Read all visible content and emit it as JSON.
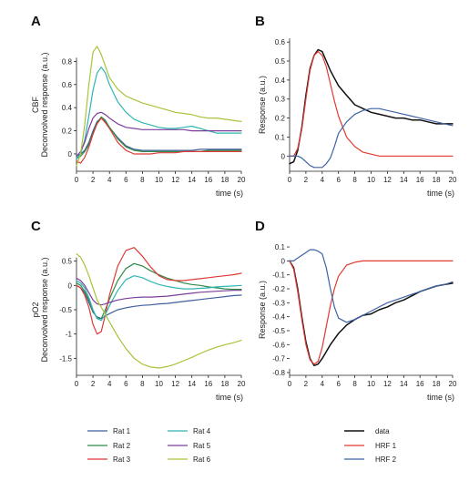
{
  "figure": {
    "legend_left": [
      "Rat 1",
      "Rat 2",
      "Rat 3",
      "Rat 4",
      "Rat 5",
      "Rat 6"
    ],
    "legend_right": [
      "data",
      "HRF 1",
      "HRF 2"
    ]
  },
  "colors": {
    "rat1": "#3f5f9c",
    "rat2": "#2e8b4a",
    "rat3": "#dd3a35",
    "rat4": "#32b4b4",
    "rat5": "#7b3f9a",
    "rat6": "#a8c43a",
    "data": "#111111",
    "hrf1": "#e03a32",
    "hrf2": "#3e62a6"
  },
  "chart_data": [
    {
      "panel": "A",
      "type": "line",
      "side_label": "CBF",
      "ylabel": "Deconvolved response (a.u.)",
      "xlabel": "time (s)",
      "xlim": [
        0,
        20
      ],
      "ylim": [
        -0.15,
        1.0
      ],
      "xticks": [
        0,
        2,
        4,
        6,
        8,
        10,
        12,
        14,
        16,
        18,
        20
      ],
      "yticks": [
        0,
        0.2,
        0.4,
        0.6,
        0.8
      ],
      "x": [
        0,
        0.5,
        1,
        1.5,
        2,
        2.5,
        3,
        3.5,
        4,
        5,
        6,
        7,
        8,
        9,
        10,
        11,
        12,
        13,
        14,
        15,
        16,
        17,
        18,
        19,
        20
      ],
      "series": [
        {
          "name": "Rat 1",
          "color_key": "rat1",
          "values": [
            -0.02,
            0.0,
            0.03,
            0.1,
            0.2,
            0.28,
            0.31,
            0.28,
            0.23,
            0.14,
            0.07,
            0.04,
            0.03,
            0.03,
            0.03,
            0.03,
            0.03,
            0.03,
            0.03,
            0.04,
            0.04,
            0.04,
            0.04,
            0.04,
            0.04
          ]
        },
        {
          "name": "Rat 2",
          "color_key": "rat2",
          "values": [
            -0.04,
            -0.02,
            0.02,
            0.08,
            0.18,
            0.27,
            0.32,
            0.29,
            0.23,
            0.13,
            0.06,
            0.03,
            0.02,
            0.02,
            0.02,
            0.02,
            0.02,
            0.02,
            0.02,
            0.02,
            0.03,
            0.03,
            0.03,
            0.03,
            0.03
          ]
        },
        {
          "name": "Rat 3",
          "color_key": "rat3",
          "values": [
            -0.06,
            -0.08,
            -0.03,
            0.06,
            0.17,
            0.26,
            0.31,
            0.27,
            0.22,
            0.1,
            0.03,
            0.0,
            0.0,
            0.0,
            0.01,
            0.01,
            0.01,
            0.02,
            0.02,
            0.02,
            0.02,
            0.02,
            0.02,
            0.02,
            0.02
          ]
        },
        {
          "name": "Rat 4",
          "color_key": "rat4",
          "values": [
            -0.04,
            0.0,
            0.12,
            0.33,
            0.55,
            0.7,
            0.75,
            0.7,
            0.6,
            0.45,
            0.36,
            0.3,
            0.27,
            0.25,
            0.23,
            0.22,
            0.22,
            0.23,
            0.24,
            0.22,
            0.2,
            0.18,
            0.18,
            0.18,
            0.18
          ]
        },
        {
          "name": "Rat 5",
          "color_key": "rat5",
          "values": [
            -0.02,
            0.02,
            0.1,
            0.22,
            0.31,
            0.35,
            0.36,
            0.34,
            0.31,
            0.26,
            0.23,
            0.22,
            0.21,
            0.21,
            0.21,
            0.21,
            0.21,
            0.21,
            0.2,
            0.2,
            0.2,
            0.2,
            0.2,
            0.2,
            0.2
          ]
        },
        {
          "name": "Rat 6",
          "color_key": "rat6",
          "values": [
            -0.1,
            0.0,
            0.25,
            0.6,
            0.88,
            0.93,
            0.86,
            0.76,
            0.66,
            0.56,
            0.5,
            0.47,
            0.44,
            0.42,
            0.4,
            0.38,
            0.36,
            0.35,
            0.34,
            0.32,
            0.31,
            0.31,
            0.3,
            0.29,
            0.28
          ]
        }
      ]
    },
    {
      "panel": "B",
      "type": "line",
      "ylabel": "Response (a.u.)",
      "xlabel": "time (s)",
      "xlim": [
        0,
        20
      ],
      "ylim": [
        -0.08,
        0.62
      ],
      "xticks": [
        0,
        2,
        4,
        6,
        8,
        10,
        12,
        14,
        16,
        18,
        20
      ],
      "yticks": [
        0,
        0.1,
        0.2,
        0.3,
        0.4,
        0.5,
        0.6
      ],
      "x": [
        0,
        0.5,
        1,
        1.5,
        2,
        2.5,
        3,
        3.5,
        4,
        4.5,
        5,
        5.5,
        6,
        7,
        8,
        9,
        10,
        11,
        12,
        13,
        14,
        15,
        16,
        17,
        18,
        19,
        20
      ],
      "series": [
        {
          "name": "data",
          "color_key": "data",
          "values": [
            -0.04,
            -0.03,
            0.03,
            0.15,
            0.32,
            0.46,
            0.53,
            0.56,
            0.55,
            0.5,
            0.45,
            0.41,
            0.37,
            0.32,
            0.27,
            0.25,
            0.23,
            0.22,
            0.21,
            0.2,
            0.2,
            0.19,
            0.19,
            0.18,
            0.17,
            0.17,
            0.17
          ]
        },
        {
          "name": "HRF 1",
          "color_key": "hrf1",
          "values": [
            0.0,
            0.0,
            0.04,
            0.14,
            0.3,
            0.45,
            0.53,
            0.55,
            0.53,
            0.47,
            0.38,
            0.29,
            0.21,
            0.1,
            0.05,
            0.02,
            0.01,
            0.0,
            0.0,
            0.0,
            0.0,
            0.0,
            0.0,
            0.0,
            0.0,
            0.0,
            0.0
          ]
        },
        {
          "name": "HRF 2",
          "color_key": "hrf2",
          "values": [
            0.0,
            0.0,
            0.0,
            -0.01,
            -0.03,
            -0.05,
            -0.06,
            -0.06,
            -0.06,
            -0.04,
            -0.01,
            0.05,
            0.12,
            0.18,
            0.22,
            0.24,
            0.25,
            0.25,
            0.24,
            0.23,
            0.22,
            0.21,
            0.2,
            0.19,
            0.18,
            0.17,
            0.16
          ]
        }
      ]
    },
    {
      "panel": "C",
      "type": "line",
      "side_label": "pO2",
      "ylabel": "Deconvolved response (a.u.)",
      "xlabel": "time (s)",
      "xlim": [
        0,
        20
      ],
      "ylim": [
        -1.85,
        0.85
      ],
      "xticks": [
        0,
        2,
        4,
        6,
        8,
        10,
        12,
        14,
        16,
        18,
        20
      ],
      "yticks": [
        -1.5,
        -1,
        -0.5,
        0,
        0.5
      ],
      "x": [
        0,
        0.5,
        1,
        1.5,
        2,
        2.5,
        3,
        3.5,
        4,
        5,
        6,
        7,
        8,
        9,
        10,
        11,
        12,
        13,
        14,
        15,
        16,
        17,
        18,
        19,
        20
      ],
      "series": [
        {
          "name": "Rat 1",
          "color_key": "rat1",
          "values": [
            0.0,
            -0.05,
            -0.15,
            -0.35,
            -0.55,
            -0.65,
            -0.68,
            -0.63,
            -0.58,
            -0.5,
            -0.46,
            -0.43,
            -0.41,
            -0.4,
            -0.38,
            -0.37,
            -0.35,
            -0.33,
            -0.31,
            -0.29,
            -0.27,
            -0.25,
            -0.23,
            -0.21,
            -0.2
          ]
        },
        {
          "name": "Rat 2",
          "color_key": "rat2",
          "values": [
            0.05,
            0.0,
            -0.12,
            -0.3,
            -0.52,
            -0.68,
            -0.68,
            -0.5,
            -0.28,
            0.1,
            0.35,
            0.45,
            0.4,
            0.3,
            0.22,
            0.15,
            0.1,
            0.05,
            0.02,
            0.0,
            -0.03,
            -0.05,
            -0.07,
            -0.08,
            -0.08
          ]
        },
        {
          "name": "Rat 3",
          "color_key": "rat3",
          "values": [
            0.0,
            -0.05,
            -0.2,
            -0.45,
            -0.8,
            -1.0,
            -0.95,
            -0.6,
            -0.2,
            0.4,
            0.72,
            0.78,
            0.6,
            0.38,
            0.2,
            0.12,
            0.1,
            0.1,
            0.12,
            0.14,
            0.16,
            0.18,
            0.2,
            0.22,
            0.25
          ]
        },
        {
          "name": "Rat 4",
          "color_key": "rat4",
          "values": [
            0.1,
            0.05,
            -0.05,
            -0.25,
            -0.5,
            -0.68,
            -0.72,
            -0.6,
            -0.42,
            -0.1,
            0.12,
            0.2,
            0.16,
            0.08,
            0.02,
            -0.02,
            -0.05,
            -0.07,
            -0.07,
            -0.06,
            -0.05,
            -0.03,
            -0.02,
            -0.01,
            0.0
          ]
        },
        {
          "name": "Rat 5",
          "color_key": "rat5",
          "values": [
            0.15,
            0.1,
            0.0,
            -0.15,
            -0.3,
            -0.38,
            -0.4,
            -0.38,
            -0.35,
            -0.3,
            -0.27,
            -0.25,
            -0.24,
            -0.24,
            -0.23,
            -0.22,
            -0.2,
            -0.18,
            -0.16,
            -0.14,
            -0.13,
            -0.12,
            -0.11,
            -0.1,
            -0.1
          ]
        },
        {
          "name": "Rat 6",
          "color_key": "rat6",
          "values": [
            0.65,
            0.58,
            0.42,
            0.2,
            -0.05,
            -0.3,
            -0.45,
            -0.6,
            -0.75,
            -1.05,
            -1.3,
            -1.5,
            -1.62,
            -1.68,
            -1.7,
            -1.67,
            -1.62,
            -1.55,
            -1.48,
            -1.4,
            -1.33,
            -1.27,
            -1.22,
            -1.18,
            -1.13
          ]
        }
      ]
    },
    {
      "panel": "D",
      "type": "line",
      "ylabel": "Response (a.u.)",
      "xlabel": "time (s)",
      "xlim": [
        0,
        20
      ],
      "ylim": [
        -0.82,
        0.12
      ],
      "xticks": [
        0,
        2,
        4,
        6,
        8,
        10,
        12,
        14,
        16,
        18,
        20
      ],
      "yticks": [
        0.1,
        0,
        -0.1,
        -0.2,
        -0.3,
        -0.4,
        -0.5,
        -0.6,
        -0.7,
        -0.8
      ],
      "x": [
        0,
        0.5,
        1,
        1.5,
        2,
        2.5,
        3,
        3.5,
        4,
        4.5,
        5,
        5.5,
        6,
        7,
        8,
        9,
        10,
        11,
        12,
        13,
        14,
        15,
        16,
        17,
        18,
        19,
        20
      ],
      "series": [
        {
          "name": "data",
          "color_key": "data",
          "values": [
            0.0,
            -0.05,
            -0.2,
            -0.4,
            -0.58,
            -0.7,
            -0.75,
            -0.74,
            -0.7,
            -0.65,
            -0.6,
            -0.56,
            -0.52,
            -0.46,
            -0.42,
            -0.39,
            -0.38,
            -0.35,
            -0.33,
            -0.3,
            -0.28,
            -0.25,
            -0.22,
            -0.2,
            -0.18,
            -0.17,
            -0.16
          ]
        },
        {
          "name": "HRF 1",
          "color_key": "hrf1",
          "values": [
            0.0,
            -0.06,
            -0.22,
            -0.42,
            -0.6,
            -0.71,
            -0.74,
            -0.72,
            -0.62,
            -0.47,
            -0.32,
            -0.2,
            -0.11,
            -0.03,
            -0.01,
            0.0,
            0.0,
            0.0,
            0.0,
            0.0,
            0.0,
            0.0,
            0.0,
            0.0,
            0.0,
            0.0,
            0.0
          ]
        },
        {
          "name": "HRF 2",
          "color_key": "hrf2",
          "values": [
            0.0,
            0.0,
            0.02,
            0.04,
            0.06,
            0.08,
            0.08,
            0.07,
            0.05,
            -0.05,
            -0.2,
            -0.33,
            -0.41,
            -0.44,
            -0.42,
            -0.39,
            -0.36,
            -0.33,
            -0.3,
            -0.28,
            -0.26,
            -0.24,
            -0.22,
            -0.2,
            -0.18,
            -0.17,
            -0.15
          ]
        }
      ]
    }
  ]
}
